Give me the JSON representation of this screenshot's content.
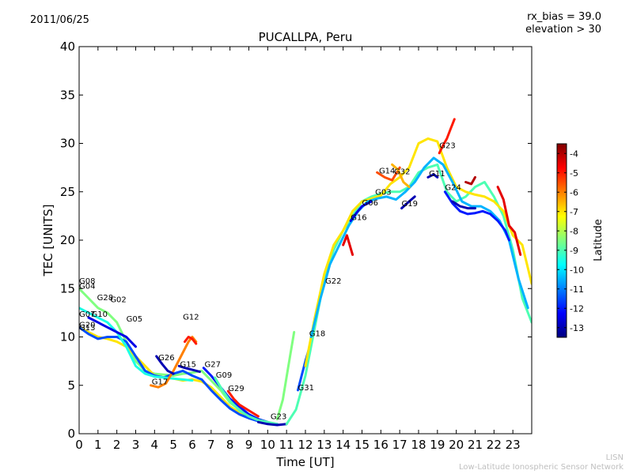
{
  "header": {
    "date": "2011/06/25",
    "rx_bias": "rx_bias = 39.0",
    "elevation": "elevation > 30"
  },
  "footer": {
    "line1": "LISN",
    "line2": "Low-Latitude Ionospheric Sensor Network"
  },
  "chart_data": {
    "type": "line",
    "title": "PUCALLPA, Peru",
    "xlabel": "Time [UT]",
    "ylabel": "TEC [UNITS]",
    "xlim": [
      0,
      24
    ],
    "ylim": [
      0,
      40
    ],
    "xticks": [
      "0",
      "1",
      "2",
      "3",
      "4",
      "5",
      "6",
      "7",
      "8",
      "9",
      "10",
      "11",
      "12",
      "13",
      "14",
      "15",
      "16",
      "17",
      "18",
      "19",
      "20",
      "21",
      "22",
      "23"
    ],
    "yticks": [
      "0",
      "5",
      "10",
      "15",
      "20",
      "25",
      "30",
      "35",
      "40"
    ],
    "colorbar": {
      "label": "Latitude",
      "min": -13.5,
      "max": -3.5,
      "ticks": [
        "-4",
        "-5",
        "-6",
        "-7",
        "-8",
        "-9",
        "-10",
        "-11",
        "-12",
        "-13"
      ]
    },
    "satellite_labels": [
      {
        "name": "G08",
        "x": 0.0,
        "y": 15.5
      },
      {
        "name": "G04",
        "x": 0.0,
        "y": 15.0
      },
      {
        "name": "G28",
        "x": 0.95,
        "y": 13.8
      },
      {
        "name": "G02",
        "x": 1.65,
        "y": 13.6
      },
      {
        "name": "G07",
        "x": 0.0,
        "y": 12.1
      },
      {
        "name": "G10",
        "x": 0.65,
        "y": 12.1
      },
      {
        "name": "G05",
        "x": 2.5,
        "y": 11.6
      },
      {
        "name": "G20",
        "x": 0.0,
        "y": 11.0
      },
      {
        "name": "G13",
        "x": 0.0,
        "y": 10.7
      },
      {
        "name": "G12",
        "x": 5.5,
        "y": 11.8
      },
      {
        "name": "G26",
        "x": 4.2,
        "y": 7.6
      },
      {
        "name": "G15",
        "x": 5.35,
        "y": 6.9
      },
      {
        "name": "G27",
        "x": 6.65,
        "y": 6.9
      },
      {
        "name": "G09",
        "x": 7.25,
        "y": 5.8
      },
      {
        "name": "G17",
        "x": 3.85,
        "y": 5.1
      },
      {
        "name": "G29",
        "x": 7.9,
        "y": 4.4
      },
      {
        "name": "G23",
        "x": 10.15,
        "y": 1.5
      },
      {
        "name": "G31",
        "x": 11.6,
        "y": 4.5
      },
      {
        "name": "G18",
        "x": 12.2,
        "y": 10.1
      },
      {
        "name": "G22",
        "x": 13.05,
        "y": 15.5
      },
      {
        "name": "G16",
        "x": 14.4,
        "y": 22.1
      },
      {
        "name": "G06",
        "x": 15.0,
        "y": 23.6
      },
      {
        "name": "G03",
        "x": 15.7,
        "y": 24.7
      },
      {
        "name": "G14",
        "x": 15.9,
        "y": 26.9
      },
      {
        "name": "G32",
        "x": 16.7,
        "y": 26.8
      },
      {
        "name": "G19",
        "x": 17.1,
        "y": 23.5
      },
      {
        "name": "G11",
        "x": 18.55,
        "y": 26.6
      },
      {
        "name": "G24",
        "x": 19.4,
        "y": 25.2
      },
      {
        "name": "G23",
        "x": 19.1,
        "y": 29.5
      }
    ],
    "series": [
      {
        "lat": -8.5,
        "x": [
          0,
          0.5,
          1,
          1.5,
          2,
          2.5,
          3,
          3.5,
          4,
          4.5,
          5,
          5.5,
          6,
          6.5,
          7,
          7.5,
          8,
          8.5,
          9,
          9.5,
          10,
          10.5
        ],
        "y": [
          15,
          14,
          13,
          12.5,
          11.5,
          9.5,
          7.5,
          6.5,
          6.2,
          6.1,
          6,
          6.2,
          6.3,
          6.5,
          5.5,
          4.5,
          3.2,
          2.5,
          2.0,
          1.5,
          1.2,
          1.0
        ]
      },
      {
        "lat": -7.0,
        "x": [
          0,
          0.5,
          1,
          1.5,
          2,
          2.5,
          3,
          3.5,
          4,
          4.5,
          5,
          5.5,
          6,
          6.5,
          7,
          7.5,
          8,
          8.5,
          9,
          9.5,
          10
        ],
        "y": [
          11,
          10.5,
          10,
          9.8,
          9.5,
          9,
          8,
          7,
          6,
          5.8,
          5.7,
          5.5,
          5.6,
          5.4,
          4.8,
          3.8,
          2.8,
          2.2,
          1.7,
          1.4,
          1.2
        ]
      },
      {
        "lat": -11.5,
        "x": [
          0,
          0.5,
          1,
          1.5,
          2,
          2.5,
          3,
          3.5,
          4,
          4.5,
          5,
          5.5,
          6,
          6.5,
          7,
          7.5,
          8,
          8.5,
          9,
          9.5,
          10,
          10.5
        ],
        "y": [
          11,
          10.3,
          9.8,
          10,
          10,
          9.5,
          8,
          6.5,
          6,
          5.8,
          6.2,
          6.5,
          6,
          5.6,
          4.5,
          3.5,
          2.6,
          2.0,
          1.6,
          1.3,
          1.1,
          1.0
        ]
      },
      {
        "lat": -9.5,
        "x": [
          0,
          0.5,
          1,
          1.5,
          2,
          2.5,
          3,
          3.5,
          4,
          4.5,
          5,
          5.5,
          6
        ],
        "y": [
          13,
          12.5,
          12,
          11.5,
          10.5,
          9,
          7,
          6.2,
          5.9,
          5.8,
          5.7,
          5.6,
          5.5
        ]
      },
      {
        "lat": -12.5,
        "x": [
          0.5,
          1,
          1.5,
          2,
          2.5,
          3
        ],
        "y": [
          12,
          11.5,
          11,
          10.5,
          10,
          9
        ]
      },
      {
        "lat": -6.0,
        "x": [
          3.8,
          4.2,
          4.6,
          5,
          5.4,
          5.8,
          6.0,
          6.2
        ],
        "y": [
          5,
          4.8,
          5.2,
          6.5,
          8,
          9.5,
          10,
          9.5
        ]
      },
      {
        "lat": -5.0,
        "x": [
          5.6,
          5.8,
          6.0,
          6.2
        ],
        "y": [
          9.5,
          10,
          9.8,
          9.3
        ]
      },
      {
        "lat": -13.0,
        "x": [
          4.1,
          4.4,
          4.7,
          5.0
        ],
        "y": [
          8,
          7.2,
          6.5,
          6.2
        ]
      },
      {
        "lat": -13.0,
        "x": [
          5.3,
          5.6,
          6.0,
          6.4
        ],
        "y": [
          7,
          6.8,
          6.6,
          6.4
        ]
      },
      {
        "lat": -12.0,
        "x": [
          6.6,
          7.0,
          7.5,
          8.0,
          8.5,
          9.0,
          9.5,
          10.0
        ],
        "y": [
          6.8,
          6.0,
          4.8,
          3.6,
          2.8,
          2.0,
          1.5,
          1.2
        ]
      },
      {
        "lat": -9.0,
        "x": [
          7.2,
          7.6,
          8.0,
          8.5,
          9.0,
          9.5,
          10.0,
          10.5
        ],
        "y": [
          5.8,
          4.5,
          3.4,
          2.4,
          1.8,
          1.4,
          1.2,
          1.0
        ]
      },
      {
        "lat": -5.0,
        "x": [
          7.9,
          8.2,
          8.5,
          9.0,
          9.5
        ],
        "y": [
          4.4,
          3.6,
          3.0,
          2.4,
          1.8
        ]
      },
      {
        "lat": -13.0,
        "x": [
          9.5,
          10,
          10.5,
          11.0
        ],
        "y": [
          1.2,
          1.0,
          0.9,
          1.0
        ]
      },
      {
        "lat": -8.5,
        "x": [
          10.5,
          10.8,
          11.1,
          11.4
        ],
        "y": [
          1.5,
          3.5,
          7,
          10.5
        ]
      },
      {
        "lat": -11.5,
        "x": [
          11.6,
          11.8,
          12.0,
          12.3
        ],
        "y": [
          4.5,
          6,
          7.5,
          9.5
        ]
      },
      {
        "lat": -9.0,
        "x": [
          11.0,
          11.5,
          12.0,
          12.5,
          13,
          13.5,
          14,
          14.5,
          15,
          15.5,
          16,
          16.5,
          17,
          17.5,
          18,
          18.5,
          19,
          19.5,
          20,
          20.5,
          21,
          21.5,
          22,
          22.5,
          23,
          23.5,
          24
        ],
        "y": [
          1.0,
          2.5,
          6,
          11,
          16,
          19,
          21,
          22.5,
          24,
          24.5,
          24.8,
          25,
          25,
          25.5,
          27,
          27.5,
          27.8,
          25,
          24,
          24.5,
          25.5,
          26,
          24.5,
          22.5,
          19,
          14,
          11.5
        ]
      },
      {
        "lat": -7.0,
        "x": [
          12.0,
          12.5,
          13,
          13.5,
          14,
          14.5,
          15,
          15.5,
          16,
          16.5,
          17,
          17.5,
          18,
          18.5,
          19,
          19.5,
          20,
          20.5,
          21,
          21.5,
          22,
          22.5,
          23,
          23.5,
          24
        ],
        "y": [
          7,
          12,
          16.5,
          19.5,
          21,
          23,
          24,
          24.3,
          24.6,
          25.8,
          26.5,
          27.5,
          30,
          30.5,
          30.2,
          27.5,
          25.5,
          25,
          24.7,
          24.5,
          24,
          23,
          20.5,
          19.5,
          15.5
        ]
      },
      {
        "lat": -10.5,
        "x": [
          12.3,
          12.8,
          13.3,
          13.8,
          14.3,
          14.8,
          15.3,
          15.8,
          16.3,
          16.8,
          17.3,
          17.8,
          18.3,
          18.8,
          19.3,
          19.8,
          20.3,
          20.8,
          21.3,
          21.8,
          22.3,
          22.8,
          23.3,
          23.8
        ],
        "y": [
          10,
          14,
          17.5,
          19.5,
          21.5,
          23,
          24,
          24.3,
          24.5,
          24.2,
          25,
          26,
          27.5,
          28.5,
          27.8,
          26,
          24,
          23.5,
          23.5,
          23.0,
          22,
          20,
          16,
          13
        ]
      },
      {
        "lat": -12.5,
        "x": [
          14.4,
          14.7,
          15.0,
          15.5
        ],
        "y": [
          22,
          22.8,
          23.5,
          24
        ]
      },
      {
        "lat": -13.0,
        "x": [
          17.1,
          17.5,
          17.8
        ],
        "y": [
          23.3,
          24,
          24.5
        ]
      },
      {
        "lat": -12.0,
        "x": [
          19.4,
          19.8,
          20.2,
          20.6,
          21.0,
          21.4,
          21.8,
          22.2,
          22.6,
          22.8
        ],
        "y": [
          25,
          23.8,
          23.0,
          22.7,
          22.8,
          23.0,
          22.7,
          22,
          21,
          20
        ]
      },
      {
        "lat": -13.0,
        "x": [
          19.8,
          20.2,
          20.6,
          21.0
        ],
        "y": [
          24,
          23.5,
          23.3,
          23.3
        ]
      },
      {
        "lat": -5.0,
        "x": [
          19.1,
          19.3,
          19.5,
          19.7,
          19.9
        ],
        "y": [
          29,
          29.8,
          30.5,
          31.5,
          32.5
        ]
      },
      {
        "lat": -5.5,
        "x": [
          15.8,
          16.2,
          16.6,
          17.0
        ],
        "y": [
          27,
          26.5,
          26.2,
          27.5
        ]
      },
      {
        "lat": -6.5,
        "x": [
          16.6,
          16.9,
          17.2,
          17.5
        ],
        "y": [
          27.8,
          27.3,
          26.0,
          25.5
        ]
      },
      {
        "lat": -4.0,
        "x": [
          20.5,
          20.8,
          21.0
        ],
        "y": [
          26.0,
          25.8,
          26.5
        ]
      },
      {
        "lat": -4.5,
        "x": [
          22.2,
          22.5,
          22.8,
          23.1,
          23.4
        ],
        "y": [
          25.5,
          24.2,
          21.5,
          20.8,
          18.5
        ]
      },
      {
        "lat": -4.5,
        "x": [
          14.0,
          14.2,
          14.5
        ],
        "y": [
          19.5,
          20.5,
          18.5
        ]
      },
      {
        "lat": -13.0,
        "x": [
          18.5,
          18.8,
          19.0
        ],
        "y": [
          26.5,
          26.8,
          26.5
        ]
      }
    ]
  }
}
